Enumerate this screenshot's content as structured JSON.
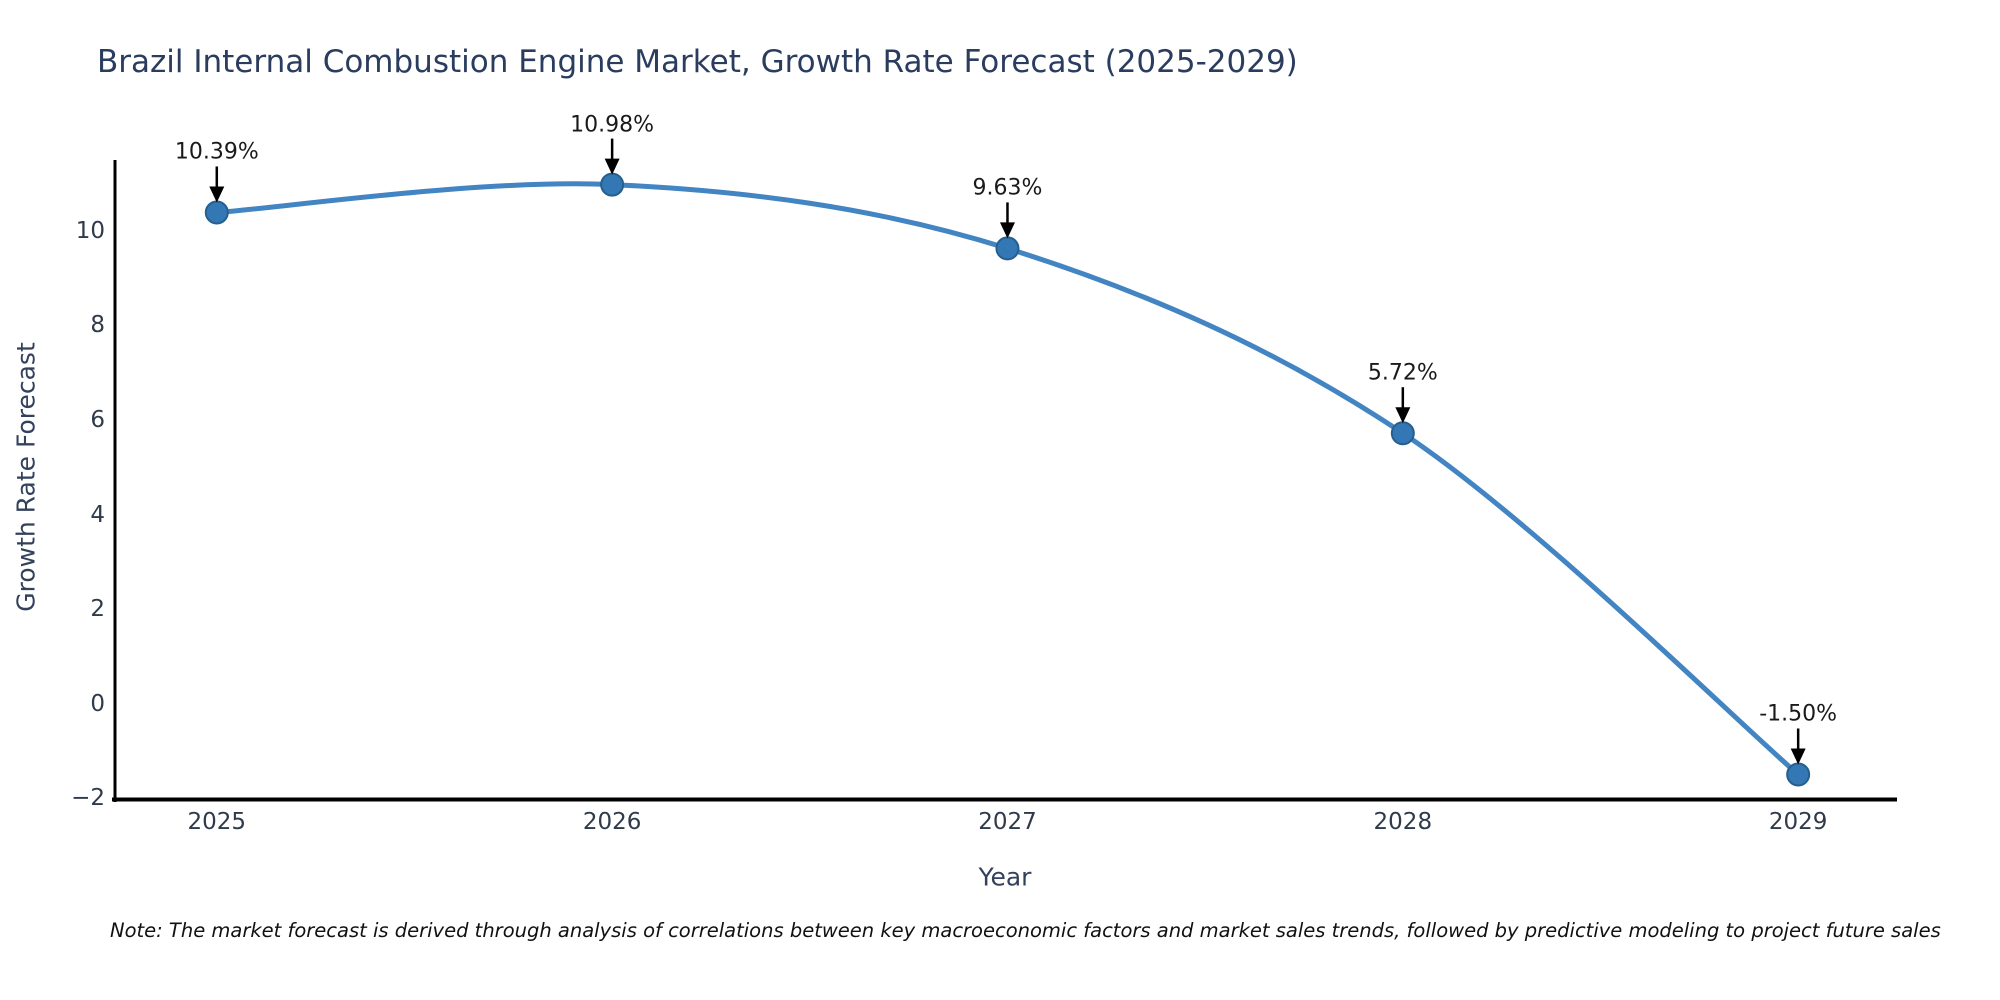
{
  "chart_data": {
    "type": "line",
    "title": "Brazil Internal Combustion Engine Market, Growth Rate Forecast (2025-2029)",
    "xlabel": "Year",
    "ylabel": "Growth Rate Forecast",
    "note": "Note: The market forecast is derived through analysis of correlations between key macroeconomic factors and market sales trends, followed by predictive modeling to project future sales",
    "x": [
      2025,
      2026,
      2027,
      2028,
      2029
    ],
    "xticklabels": [
      "2025",
      "2026",
      "2027",
      "2028",
      "2029"
    ],
    "series": [
      {
        "name": "Growth Rate Forecast",
        "values": [
          10.39,
          10.98,
          9.63,
          5.72,
          -1.5
        ]
      }
    ],
    "point_labels": [
      "10.39%",
      "10.98%",
      "9.63%",
      "5.72%",
      "-1.50%"
    ],
    "yticks": [
      -2,
      0,
      2,
      4,
      6,
      8,
      10
    ],
    "yticklabels": [
      "−2",
      "0",
      "2",
      "4",
      "6",
      "8",
      "10"
    ],
    "xlim": [
      2024.74,
      2029.25
    ],
    "ylim": [
      -2.04,
      11.5
    ],
    "grid": false,
    "legend": false,
    "line_shape": "spline",
    "annotation_arrows": "down",
    "colors": {
      "line": "#4285c2",
      "marker_fill": "#3377b4",
      "marker_edge": "#265f8e",
      "spine": "#000000",
      "title_text": "#2b3d5f",
      "axis_text": "#33415c",
      "tick_text": "#2f3a4a",
      "annotation_text": "#1a1a1a",
      "background": "#ffffff"
    }
  }
}
